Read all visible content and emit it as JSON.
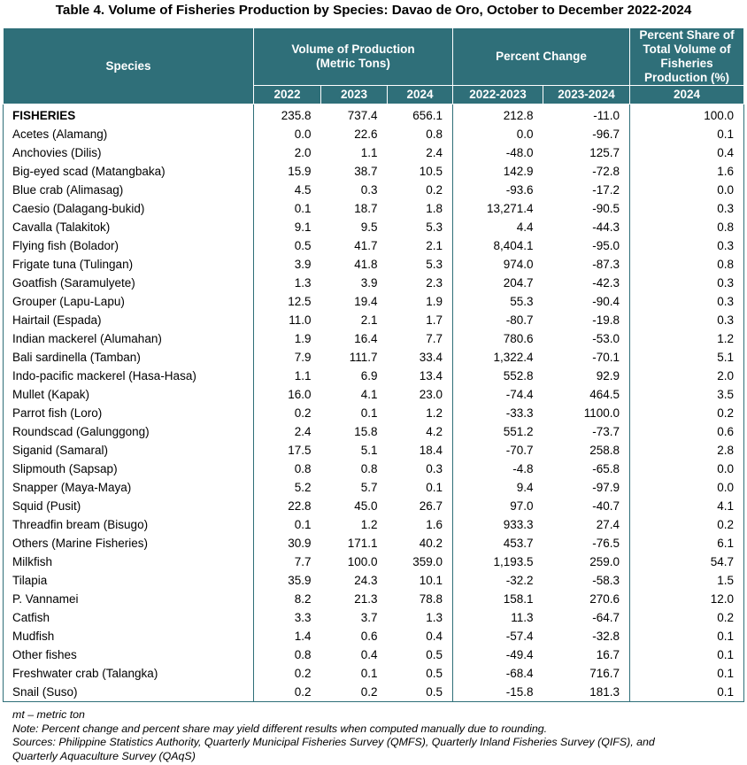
{
  "title": "Table 4. Volume of Fisheries Production by Species: Davao de Oro, October to December 2022-2024",
  "header": {
    "species": "Species",
    "volume_group": "Volume of Production (Metric Tons)",
    "percent_change_group": "Percent Change",
    "percent_share_group": "Percent Share of Total Volume of Fisheries Production (%)",
    "sub": [
      "2022",
      "2023",
      "2024",
      "2022-2023",
      "2023-2024",
      "2024"
    ]
  },
  "rows": [
    {
      "species": "FISHERIES",
      "v2022": "235.8",
      "v2023": "737.4",
      "v2024": "656.1",
      "pc1": "212.8",
      "pc2": "-11.0",
      "share": "100.0"
    },
    {
      "species": "Acetes (Alamang)",
      "v2022": "0.0",
      "v2023": "22.6",
      "v2024": "0.8",
      "pc1": "0.0",
      "pc2": "-96.7",
      "share": "0.1"
    },
    {
      "species": "Anchovies (Dilis)",
      "v2022": "2.0",
      "v2023": "1.1",
      "v2024": "2.4",
      "pc1": "-48.0",
      "pc2": "125.7",
      "share": "0.4"
    },
    {
      "species": "Big-eyed scad (Matangbaka)",
      "v2022": "15.9",
      "v2023": "38.7",
      "v2024": "10.5",
      "pc1": "142.9",
      "pc2": "-72.8",
      "share": "1.6"
    },
    {
      "species": "Blue crab (Alimasag)",
      "v2022": "4.5",
      "v2023": "0.3",
      "v2024": "0.2",
      "pc1": "-93.6",
      "pc2": "-17.2",
      "share": "0.0"
    },
    {
      "species": "Caesio (Dalagang-bukid)",
      "v2022": "0.1",
      "v2023": "18.7",
      "v2024": "1.8",
      "pc1": "13,271.4",
      "pc2": "-90.5",
      "share": "0.3"
    },
    {
      "species": "Cavalla (Talakitok)",
      "v2022": "9.1",
      "v2023": "9.5",
      "v2024": "5.3",
      "pc1": "4.4",
      "pc2": "-44.3",
      "share": "0.8"
    },
    {
      "species": "Flying fish (Bolador)",
      "v2022": "0.5",
      "v2023": "41.7",
      "v2024": "2.1",
      "pc1": "8,404.1",
      "pc2": "-95.0",
      "share": "0.3"
    },
    {
      "species": "Frigate tuna (Tulingan)",
      "v2022": "3.9",
      "v2023": "41.8",
      "v2024": "5.3",
      "pc1": "974.0",
      "pc2": "-87.3",
      "share": "0.8"
    },
    {
      "species": "Goatfish (Saramulyete)",
      "v2022": "1.3",
      "v2023": "3.9",
      "v2024": "2.3",
      "pc1": "204.7",
      "pc2": "-42.3",
      "share": "0.3"
    },
    {
      "species": "Grouper (Lapu-Lapu)",
      "v2022": "12.5",
      "v2023": "19.4",
      "v2024": "1.9",
      "pc1": "55.3",
      "pc2": "-90.4",
      "share": "0.3"
    },
    {
      "species": "Hairtail (Espada)",
      "v2022": "11.0",
      "v2023": "2.1",
      "v2024": "1.7",
      "pc1": "-80.7",
      "pc2": "-19.8",
      "share": "0.3"
    },
    {
      "species": "Indian mackerel (Alumahan)",
      "v2022": "1.9",
      "v2023": "16.4",
      "v2024": "7.7",
      "pc1": "780.6",
      "pc2": "-53.0",
      "share": "1.2"
    },
    {
      "species": "Bali sardinella (Tamban)",
      "v2022": "7.9",
      "v2023": "111.7",
      "v2024": "33.4",
      "pc1": "1,322.4",
      "pc2": "-70.1",
      "share": "5.1"
    },
    {
      "species": "Indo-pacific mackerel (Hasa-Hasa)",
      "v2022": "1.1",
      "v2023": "6.9",
      "v2024": "13.4",
      "pc1": "552.8",
      "pc2": "92.9",
      "share": "2.0"
    },
    {
      "species": "Mullet (Kapak)",
      "v2022": "16.0",
      "v2023": "4.1",
      "v2024": "23.0",
      "pc1": "-74.4",
      "pc2": "464.5",
      "share": "3.5"
    },
    {
      "species": "Parrot fish (Loro)",
      "v2022": "0.2",
      "v2023": "0.1",
      "v2024": "1.2",
      "pc1": "-33.3",
      "pc2": "1100.0",
      "share": "0.2"
    },
    {
      "species": "Roundscad (Galunggong)",
      "v2022": "2.4",
      "v2023": "15.8",
      "v2024": "4.2",
      "pc1": "551.2",
      "pc2": "-73.7",
      "share": "0.6"
    },
    {
      "species": "Siganid (Samaral)",
      "v2022": "17.5",
      "v2023": "5.1",
      "v2024": "18.4",
      "pc1": "-70.7",
      "pc2": "258.8",
      "share": "2.8"
    },
    {
      "species": "Slipmouth (Sapsap)",
      "v2022": "0.8",
      "v2023": "0.8",
      "v2024": "0.3",
      "pc1": "-4.8",
      "pc2": "-65.8",
      "share": "0.0"
    },
    {
      "species": "Snapper (Maya-Maya)",
      "v2022": "5.2",
      "v2023": "5.7",
      "v2024": "0.1",
      "pc1": "9.4",
      "pc2": "-97.9",
      "share": "0.0"
    },
    {
      "species": "Squid (Pusit)",
      "v2022": "22.8",
      "v2023": "45.0",
      "v2024": "26.7",
      "pc1": "97.0",
      "pc2": "-40.7",
      "share": "4.1"
    },
    {
      "species": "Threadfin bream (Bisugo)",
      "v2022": "0.1",
      "v2023": "1.2",
      "v2024": "1.6",
      "pc1": "933.3",
      "pc2": "27.4",
      "share": "0.2"
    },
    {
      "species": "Others (Marine Fisheries)",
      "v2022": "30.9",
      "v2023": "171.1",
      "v2024": "40.2",
      "pc1": "453.7",
      "pc2": "-76.5",
      "share": "6.1"
    },
    {
      "species": "Milkfish",
      "v2022": "7.7",
      "v2023": "100.0",
      "v2024": "359.0",
      "pc1": "1,193.5",
      "pc2": "259.0",
      "share": "54.7"
    },
    {
      "species": "Tilapia",
      "v2022": "35.9",
      "v2023": "24.3",
      "v2024": "10.1",
      "pc1": "-32.2",
      "pc2": "-58.3",
      "share": "1.5"
    },
    {
      "species": "P. Vannamei",
      "v2022": "8.2",
      "v2023": "21.3",
      "v2024": "78.8",
      "pc1": "158.1",
      "pc2": "270.6",
      "share": "12.0"
    },
    {
      "species": "Catfish",
      "v2022": "3.3",
      "v2023": "3.7",
      "v2024": "1.3",
      "pc1": "11.3",
      "pc2": "-64.7",
      "share": "0.2"
    },
    {
      "species": "Mudfish",
      "v2022": "1.4",
      "v2023": "0.6",
      "v2024": "0.4",
      "pc1": "-57.4",
      "pc2": "-32.8",
      "share": "0.1"
    },
    {
      "species": "Other fishes",
      "v2022": "0.8",
      "v2023": "0.4",
      "v2024": "0.5",
      "pc1": "-49.4",
      "pc2": "16.7",
      "share": "0.1"
    },
    {
      "species": "Freshwater crab (Talangka)",
      "v2022": "0.2",
      "v2023": "0.1",
      "v2024": "0.5",
      "pc1": "-68.4",
      "pc2": "716.7",
      "share": "0.1"
    },
    {
      "species": "Snail (Suso)",
      "v2022": "0.2",
      "v2023": "0.2",
      "v2024": "0.5",
      "pc1": "-15.8",
      "pc2": "181.3",
      "share": "0.1"
    }
  ],
  "notes": [
    "mt – metric ton",
    "Note: Percent change and percent share may yield different results when computed manually due to rounding.",
    "Sources: Philippine Statistics Authority, Quarterly Municipal Fisheries Survey (QMFS), Quarterly Inland Fisheries Survey (QIFS), and",
    "Quarterly Aquaculture Survey (QAqS)"
  ],
  "colors": {
    "header_bg": "#2f6f79",
    "header_text": "#ffffff"
  }
}
